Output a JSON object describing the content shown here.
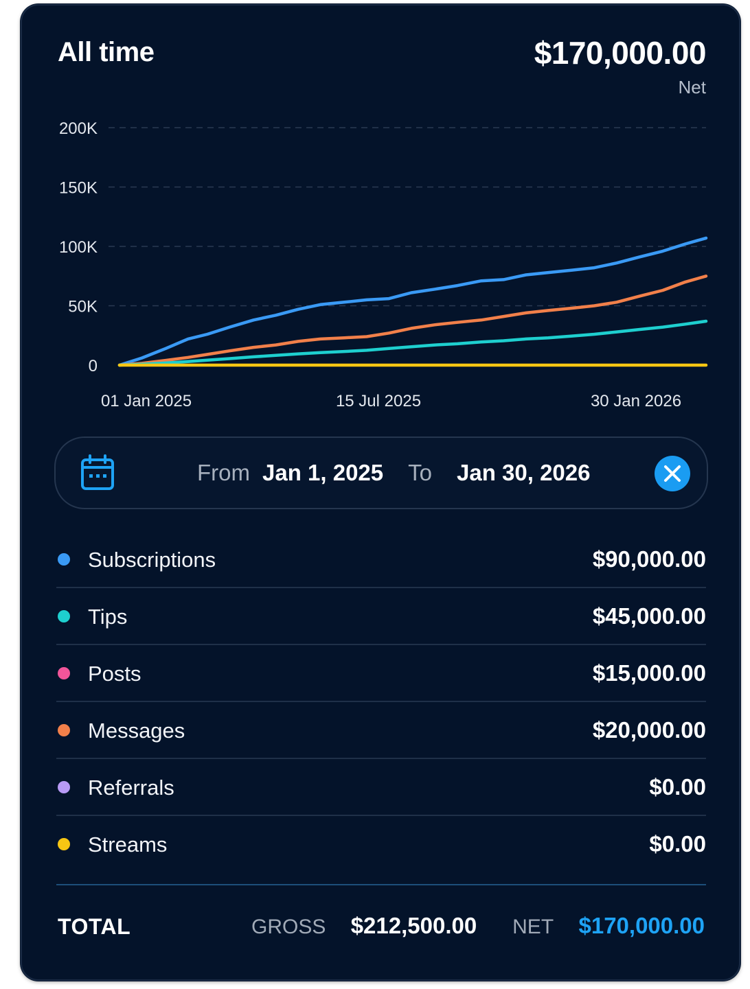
{
  "header": {
    "title": "All time",
    "amount": "$170,000.00",
    "amount_caption": "Net"
  },
  "chart_data": {
    "type": "line",
    "x_tick_labels": [
      "01 Jan 2025",
      "15 Jul 2025",
      "30 Jan 2026"
    ],
    "y_tick_labels": [
      "0",
      "50K",
      "100K",
      "150K",
      "200K"
    ],
    "ylim": [
      0,
      200000
    ],
    "grid": "horizontal dashed",
    "x_range": [
      "2025-01-01",
      "2026-01-30"
    ],
    "series": [
      {
        "name": "Subscriptions",
        "color": "#3a9af5",
        "x": [
          "2025-01-01",
          "2025-01-16",
          "2025-02-01",
          "2025-02-16",
          "2025-03-01",
          "2025-03-16",
          "2025-04-01",
          "2025-04-16",
          "2025-05-01",
          "2025-05-16",
          "2025-06-01",
          "2025-06-16",
          "2025-07-01",
          "2025-07-16",
          "2025-08-01",
          "2025-08-16",
          "2025-09-01",
          "2025-09-16",
          "2025-10-01",
          "2025-10-16",
          "2025-11-01",
          "2025-11-16",
          "2025-12-01",
          "2025-12-16",
          "2026-01-01",
          "2026-01-16",
          "2026-01-30"
        ],
        "values": [
          0,
          6000,
          14000,
          22000,
          26000,
          32000,
          38000,
          42000,
          47000,
          51000,
          53000,
          55000,
          56000,
          61000,
          64000,
          67000,
          71000,
          72000,
          76000,
          78000,
          80000,
          82000,
          86000,
          91000,
          96000,
          102000,
          107000
        ]
      },
      {
        "name": "Messages",
        "color": "#f2804a",
        "x": [
          "2025-01-01",
          "2025-01-16",
          "2025-02-01",
          "2025-02-16",
          "2025-03-01",
          "2025-03-16",
          "2025-04-01",
          "2025-04-16",
          "2025-05-01",
          "2025-05-16",
          "2025-06-01",
          "2025-06-16",
          "2025-07-01",
          "2025-07-16",
          "2025-08-01",
          "2025-08-16",
          "2025-09-01",
          "2025-09-16",
          "2025-10-01",
          "2025-10-16",
          "2025-11-01",
          "2025-11-16",
          "2025-12-01",
          "2025-12-16",
          "2026-01-01",
          "2026-01-16",
          "2026-01-30"
        ],
        "values": [
          0,
          1500,
          4000,
          6500,
          9000,
          12000,
          15000,
          17000,
          20000,
          22000,
          23000,
          24000,
          27000,
          31000,
          34000,
          36000,
          38000,
          41000,
          44000,
          46000,
          48000,
          50000,
          53000,
          58000,
          63000,
          70000,
          75000
        ]
      },
      {
        "name": "Tips",
        "color": "#1ecfcf",
        "x": [
          "2025-01-01",
          "2025-01-16",
          "2025-02-01",
          "2025-02-16",
          "2025-03-01",
          "2025-03-16",
          "2025-04-01",
          "2025-04-16",
          "2025-05-01",
          "2025-05-16",
          "2025-06-01",
          "2025-06-16",
          "2025-07-01",
          "2025-07-16",
          "2025-08-01",
          "2025-08-16",
          "2025-09-01",
          "2025-09-16",
          "2025-10-01",
          "2025-10-16",
          "2025-11-01",
          "2025-11-16",
          "2025-12-01",
          "2025-12-16",
          "2026-01-01",
          "2026-01-16",
          "2026-01-30"
        ],
        "values": [
          0,
          700,
          1800,
          3000,
          4200,
          5500,
          7000,
          8200,
          9500,
          10500,
          11500,
          12500,
          14000,
          15500,
          17000,
          18000,
          19500,
          20500,
          22000,
          23000,
          24500,
          26000,
          28000,
          30000,
          32000,
          34500,
          37000
        ]
      },
      {
        "name": "Streams",
        "color": "#f7c613",
        "x": [
          "2025-01-01",
          "2026-01-30"
        ],
        "values": [
          0,
          0
        ]
      }
    ]
  },
  "date_range": {
    "from_label": "From",
    "from_value": "Jan 1, 2025",
    "to_label": "To",
    "to_value": "Jan 30, 2026"
  },
  "categories": [
    {
      "label": "Subscriptions",
      "value": "$90,000.00",
      "color": "#3a9af5"
    },
    {
      "label": "Tips",
      "value": "$45,000.00",
      "color": "#1ecfcf"
    },
    {
      "label": "Posts",
      "value": "$15,000.00",
      "color": "#f2559a"
    },
    {
      "label": "Messages",
      "value": "$20,000.00",
      "color": "#f2804a"
    },
    {
      "label": "Referrals",
      "value": "$0.00",
      "color": "#b89af5"
    },
    {
      "label": "Streams",
      "value": "$0.00",
      "color": "#f7c613"
    }
  ],
  "totals": {
    "label": "TOTAL",
    "gross_label": "GROSS",
    "gross_value": "$212,500.00",
    "net_label": "NET",
    "net_value": "$170,000.00"
  },
  "colors": {
    "background": "#04132a",
    "accent": "#1ea3f5"
  },
  "icons": {
    "calendar": "calendar-icon",
    "clear": "close-icon"
  }
}
